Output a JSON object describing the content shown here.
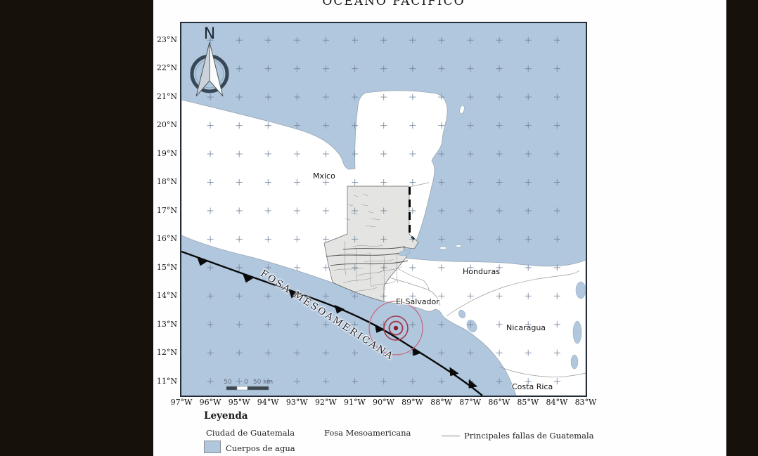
{
  "title": "OCÉANO PACÍFICO",
  "map_labels": {
    "mexico": "Mxico",
    "el_salvador": "El Salvador",
    "honduras": "Honduras",
    "nicaragua": "Nicaragua",
    "costa_rica": "Costa Rica",
    "trench_label": "FOSA MESOAMERICANA",
    "north": "N"
  },
  "scalebar": {
    "left": "50",
    "zero": "0",
    "right": "50 km"
  },
  "axes": {
    "lat_labels": [
      "23°N",
      "22°N",
      "21°N",
      "20°N",
      "19°N",
      "18°N",
      "17°N",
      "16°N",
      "15°N",
      "14°N",
      "13°N",
      "12°N",
      "11°N"
    ],
    "lon_labels": [
      "97°W",
      "96°W",
      "95°W",
      "94°W",
      "93°W",
      "92°W",
      "91°W",
      "90°W",
      "89°W",
      "88°W",
      "87°W",
      "86°W",
      "85°W",
      "84°W",
      "83°W"
    ]
  },
  "legend": {
    "title": "Leyenda",
    "city": "Ciudad de Guatemala",
    "trench": "Fosa Mesoamericana",
    "faults": "Principales fallas de Guatemala",
    "water": "Cuerpos de agua"
  },
  "colors": {
    "water": "#b0c7de",
    "land": "#ffffff",
    "guatemala_fill": "#e4e4e2",
    "graticule_cross": "#6f8299",
    "epicenter_outer_ring": "#c76b7d",
    "epicenter_rings": "#a63a4e",
    "epicenter_core": "#8e1e2e",
    "trench_line": "#0a0a0a",
    "frame_border": "#232c38",
    "background": "#17110c"
  }
}
